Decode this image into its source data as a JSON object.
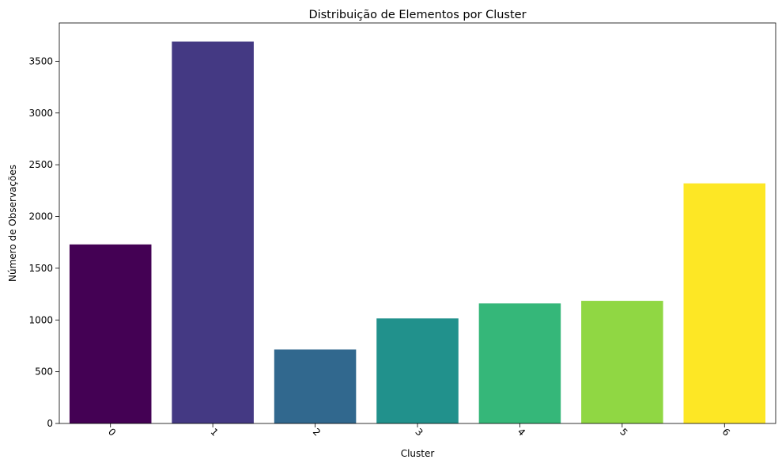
{
  "chart_data": {
    "type": "bar",
    "title": "Distribuição de Elementos por Cluster",
    "xlabel": "Cluster",
    "ylabel": "Número de Observações",
    "categories": [
      "0",
      "1",
      "2",
      "3",
      "4",
      "5",
      "6"
    ],
    "values": [
      1730,
      3690,
      715,
      1015,
      1160,
      1185,
      2320
    ],
    "colors": [
      "#440154",
      "#443983",
      "#31688e",
      "#21918c",
      "#35b779",
      "#90d743",
      "#fde725"
    ],
    "ylim": [
      0,
      3870
    ],
    "yticks": [
      0,
      500,
      1000,
      1500,
      2000,
      2500,
      3000,
      3500
    ],
    "ytick_labels": [
      "0",
      "500",
      "1000",
      "1500",
      "2000",
      "2500",
      "3000",
      "3500"
    ],
    "xtick_rotation_deg": 45,
    "grid": false,
    "legend": "none"
  }
}
